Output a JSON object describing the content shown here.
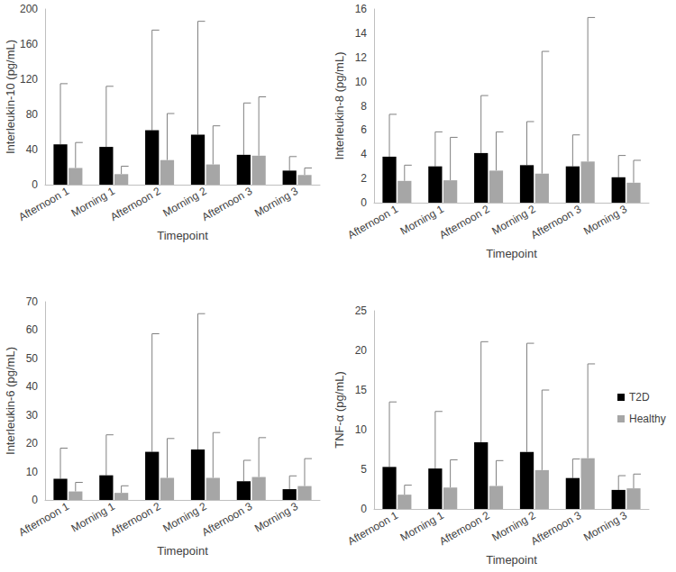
{
  "chart_data": [
    {
      "type": "bar",
      "x_label": "Timepoint",
      "y_label": "Interleukin-10 (pg/mL)",
      "categories": [
        "Afternoon 1",
        "Morning 1",
        "Afternoon 2",
        "Morning 2",
        "Afternoon 3",
        "Morning 3"
      ],
      "series": [
        {
          "name": "T2D",
          "color": "#000000",
          "values": [
            46,
            43,
            62,
            57,
            34,
            16
          ],
          "errors": [
            69,
            69,
            114,
            129,
            59,
            16
          ]
        },
        {
          "name": "Healthy",
          "color": "#a6a6a6",
          "values": [
            19,
            12,
            28,
            23,
            33,
            11
          ],
          "errors": [
            29,
            9,
            53,
            44,
            67,
            8
          ]
        }
      ],
      "ylim": [
        0,
        200
      ],
      "yticks": [
        0,
        40,
        80,
        120,
        160,
        200
      ],
      "grid": false
    },
    {
      "type": "bar",
      "x_label": "Timepoint",
      "y_label": "Interleukin-8 (pg/mL)",
      "categories": [
        "Afternoon 1",
        "Morning 1",
        "Afternoon 2",
        "Morning 2",
        "Afternoon 3",
        "Morning 3"
      ],
      "series": [
        {
          "name": "T2D",
          "color": "#000000",
          "values": [
            3.8,
            3.0,
            4.1,
            3.1,
            3.0,
            2.1
          ],
          "errors": [
            3.5,
            2.85,
            4.75,
            3.6,
            2.6,
            1.8
          ]
        },
        {
          "name": "Healthy",
          "color": "#a6a6a6",
          "values": [
            1.8,
            1.85,
            2.65,
            2.4,
            3.4,
            1.65
          ],
          "errors": [
            1.3,
            3.55,
            3.2,
            10.1,
            11.9,
            1.85
          ]
        }
      ],
      "ylim": [
        0,
        16
      ],
      "yticks": [
        0,
        2,
        4,
        6,
        8,
        10,
        12,
        14,
        16
      ],
      "grid": false
    },
    {
      "type": "bar",
      "x_label": "Timepoint",
      "y_label": "Interleukin-6 (pg/mL)",
      "categories": [
        "Afternoon 1",
        "Morning 1",
        "Afternoon 2",
        "Morning 2",
        "Afternoon 3",
        "Morning 3"
      ],
      "series": [
        {
          "name": "T2D",
          "color": "#000000",
          "values": [
            7.5,
            8.7,
            17,
            17.8,
            6.6,
            3.8
          ],
          "errors": [
            10.8,
            14.3,
            41.7,
            48,
            7.4,
            4.7
          ]
        },
        {
          "name": "Healthy",
          "color": "#a6a6a6",
          "values": [
            3.0,
            2.5,
            7.8,
            7.8,
            8.1,
            4.9
          ],
          "errors": [
            3.2,
            2.5,
            13.9,
            16,
            13.9,
            9.7
          ]
        }
      ],
      "ylim": [
        0,
        70
      ],
      "yticks": [
        0,
        10,
        20,
        30,
        40,
        50,
        60,
        70
      ],
      "grid": false
    },
    {
      "type": "bar",
      "x_label": "Timepoint",
      "y_label": "TNF-α (pg/mL)",
      "categories": [
        "Afternoon 1",
        "Morning 1",
        "Afternoon 2",
        "Morning 2",
        "Afternoon 3",
        "Morning 3"
      ],
      "series": [
        {
          "name": "T2D",
          "color": "#000000",
          "values": [
            5.3,
            5.1,
            8.4,
            7.2,
            3.9,
            2.4
          ],
          "errors": [
            8.2,
            7.2,
            12.7,
            13.7,
            2.4,
            1.8
          ]
        },
        {
          "name": "Healthy",
          "color": "#a6a6a6",
          "values": [
            1.8,
            2.7,
            2.9,
            4.9,
            6.4,
            2.6
          ],
          "errors": [
            1.2,
            3.5,
            3.2,
            10.1,
            11.9,
            1.8
          ]
        }
      ],
      "ylim": [
        0,
        25
      ],
      "yticks": [
        0,
        5,
        10,
        15,
        20,
        25
      ],
      "grid": false,
      "legend": "upper right"
    }
  ]
}
